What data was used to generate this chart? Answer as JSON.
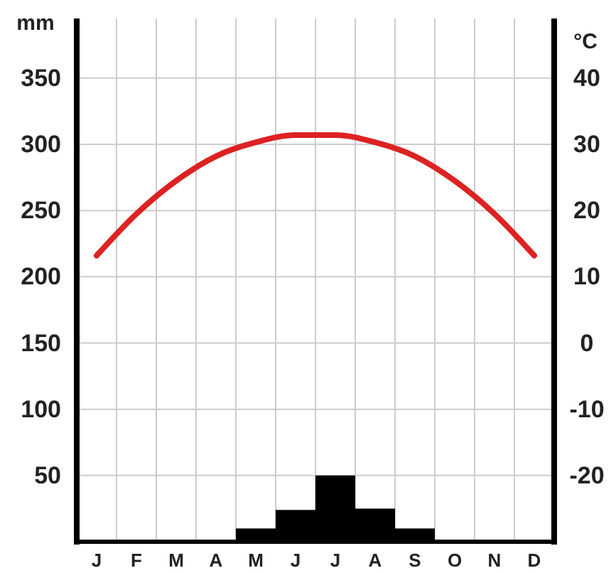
{
  "chart_data": {
    "type": "bar",
    "ylabel": "mm",
    "y2label": "°C",
    "categories": [
      "J",
      "F",
      "M",
      "A",
      "M",
      "J",
      "J",
      "A",
      "S",
      "O",
      "N",
      "D"
    ],
    "ylim": [
      0,
      395
    ],
    "yticks": [
      50,
      100,
      150,
      200,
      250,
      300,
      350
    ],
    "y2lim": [
      -30,
      49
    ],
    "y2ticks": [
      -20,
      -10,
      0,
      10,
      20,
      30,
      40
    ],
    "grid": true,
    "series": [
      {
        "color": "#000000",
        "values": [
          0,
          0,
          0,
          1,
          10,
          24,
          50,
          25,
          10,
          0,
          0,
          0
        ]
      },
      {
        "type": "line",
        "axis": "y2",
        "color": "#dd2222",
        "values": [
          13.2,
          19.5,
          24.5,
          28.2,
          30.3,
          31.4,
          31.4,
          30.3,
          28.2,
          24.5,
          19.5,
          13.2
        ]
      }
    ]
  }
}
